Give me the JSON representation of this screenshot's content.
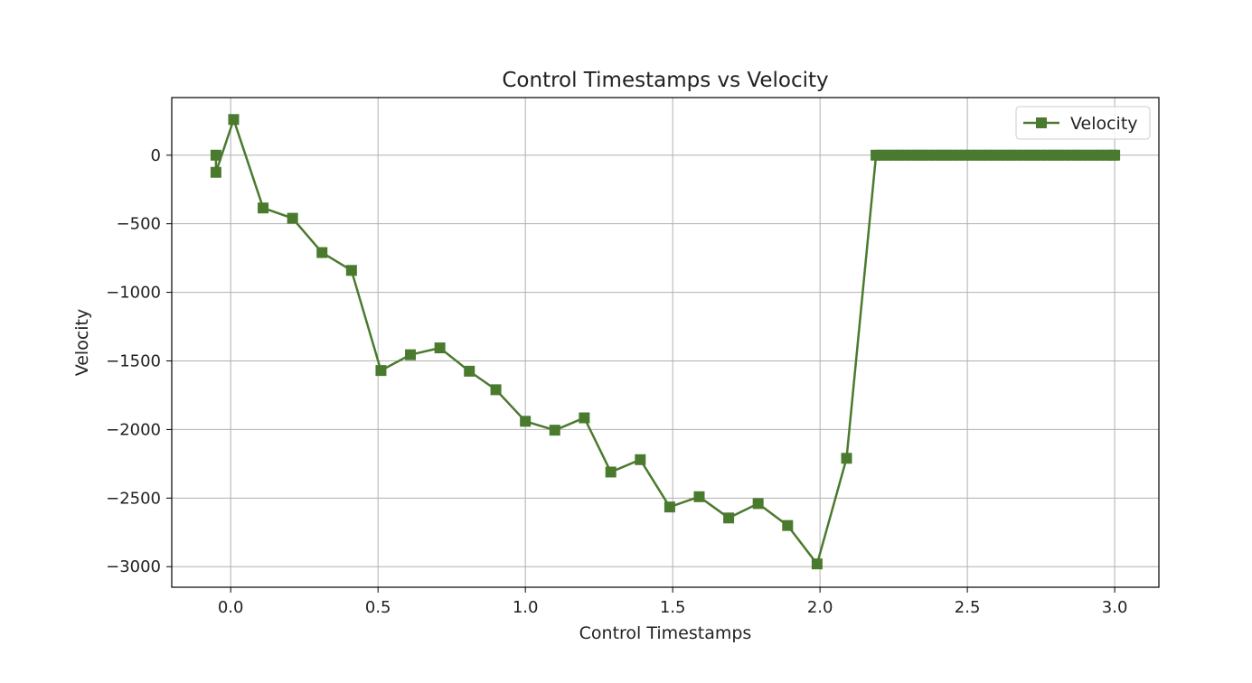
{
  "chart_data": {
    "type": "line",
    "title": "Control Timestamps vs Velocity",
    "xlabel": "Control Timestamps",
    "ylabel": "Velocity",
    "xlim": [
      -0.2,
      3.15
    ],
    "ylim": [
      -3150,
      420
    ],
    "xticks": [
      0.0,
      0.5,
      1.0,
      1.5,
      2.0,
      2.5,
      3.0
    ],
    "xtick_labels": [
      "0.0",
      "0.5",
      "1.0",
      "1.5",
      "2.0",
      "2.5",
      "3.0"
    ],
    "yticks": [
      0,
      -500,
      -1000,
      -1500,
      -2000,
      -2500,
      -3000
    ],
    "ytick_labels": [
      "0",
      "−500",
      "−1000",
      "−1500",
      "−2000",
      "−2500",
      "−3000"
    ],
    "grid": true,
    "legend_position": "top-right",
    "series": [
      {
        "name": "Velocity",
        "color": "#4a7a2e",
        "marker": "square",
        "x": [
          -0.05,
          -0.05,
          0.01,
          0.11,
          0.21,
          0.31,
          0.41,
          0.51,
          0.61,
          0.71,
          0.81,
          0.9,
          1.0,
          1.1,
          1.2,
          1.29,
          1.39,
          1.49,
          1.59,
          1.69,
          1.79,
          1.89,
          1.99,
          2.09,
          2.19,
          2.21,
          2.23,
          2.25,
          2.27,
          2.29,
          2.31,
          2.33,
          2.35,
          2.37,
          2.39,
          2.41,
          2.43,
          2.45,
          2.47,
          2.49,
          2.51,
          2.53,
          2.55,
          2.57,
          2.59,
          2.61,
          2.63,
          2.65,
          2.67,
          2.69,
          2.71,
          2.73,
          2.75,
          2.77,
          2.79,
          2.81,
          2.83,
          2.85,
          2.87,
          2.89,
          2.91,
          2.93,
          2.95,
          2.97,
          2.99,
          3.0
        ],
        "y": [
          0,
          -125,
          260,
          -385,
          -460,
          -710,
          -840,
          -1570,
          -1455,
          -1405,
          -1575,
          -1710,
          -1940,
          -2005,
          -1915,
          -2310,
          -2220,
          -2565,
          -2490,
          -2645,
          -2540,
          -2700,
          -2980,
          -2210,
          0,
          0,
          0,
          0,
          0,
          0,
          0,
          0,
          0,
          0,
          0,
          0,
          0,
          0,
          0,
          0,
          0,
          0,
          0,
          0,
          0,
          0,
          0,
          0,
          0,
          0,
          0,
          0,
          0,
          0,
          0,
          0,
          0,
          0,
          0,
          0,
          0,
          0,
          0,
          0,
          0,
          0
        ]
      }
    ]
  }
}
